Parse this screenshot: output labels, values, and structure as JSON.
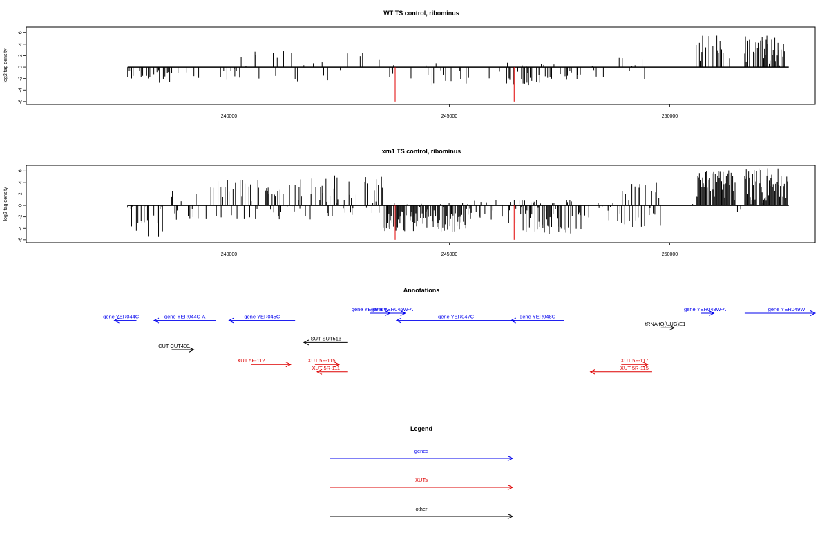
{
  "chart_data": [
    {
      "type": "bar",
      "title": "WT TS control, ribominus",
      "xlabel": "",
      "ylabel": "log2 tag density",
      "xlim": [
        235400,
        253300
      ],
      "ylim": [
        -6.5,
        7
      ],
      "xticks": [
        240000,
        245000,
        250000
      ],
      "xtick_labels": [
        "240000",
        "245000",
        "250000"
      ],
      "yticks": [
        -6,
        -4,
        -2,
        0,
        2,
        4,
        6
      ],
      "ytick_labels": [
        "-6",
        "-4",
        "-2",
        "0",
        "2",
        "4",
        "6"
      ],
      "baseline_range": [
        237700,
        252700
      ],
      "highlight_x": [
        243770,
        246470
      ],
      "highlight_y": -6,
      "highlight_color": "#e00000",
      "bar_color": "#000000",
      "seed": 11,
      "regions": [
        {
          "from": 237700,
          "to": 238700,
          "min": -3.0,
          "max": 0.0,
          "density": 0.3
        },
        {
          "from": 238700,
          "to": 239700,
          "min": -2.0,
          "max": 0.4,
          "density": 0.12
        },
        {
          "from": 239700,
          "to": 240500,
          "min": -2.5,
          "max": 2.3,
          "density": 0.2
        },
        {
          "from": 240500,
          "to": 241500,
          "min": -2.0,
          "max": 2.8,
          "density": 0.15
        },
        {
          "from": 241500,
          "to": 242400,
          "min": -2.5,
          "max": 1.5,
          "density": 0.15
        },
        {
          "from": 242400,
          "to": 243500,
          "min": -1.5,
          "max": 2.8,
          "density": 0.15
        },
        {
          "from": 243500,
          "to": 244500,
          "min": -2.5,
          "max": 0.5,
          "density": 0.15
        },
        {
          "from": 244500,
          "to": 246600,
          "min": -3.2,
          "max": 1.0,
          "density": 0.2
        },
        {
          "from": 246600,
          "to": 247900,
          "min": -3.2,
          "max": 0.5,
          "density": 0.45
        },
        {
          "from": 247900,
          "to": 248600,
          "min": -2.0,
          "max": 0.5,
          "density": 0.15
        },
        {
          "from": 248600,
          "to": 249600,
          "min": -2.8,
          "max": 2.2,
          "density": 0.25
        },
        {
          "from": 249600,
          "to": 250600,
          "min": 0.0,
          "max": 0.0,
          "density": 0.0
        },
        {
          "from": 250600,
          "to": 251400,
          "min": 0.0,
          "max": 5.5,
          "density": 0.3
        },
        {
          "from": 251400,
          "to": 251700,
          "min": -1.8,
          "max": 0.2,
          "density": 0.1
        },
        {
          "from": 251700,
          "to": 252700,
          "min": 0.0,
          "max": 5.8,
          "density": 0.55
        }
      ]
    },
    {
      "type": "bar",
      "title": "xrn1 TS control, ribominus",
      "xlabel": "",
      "ylabel": "log2 tag density",
      "xlim": [
        235400,
        253300
      ],
      "ylim": [
        -6.5,
        7
      ],
      "xticks": [
        240000,
        245000,
        250000
      ],
      "xtick_labels": [
        "240000",
        "245000",
        "250000"
      ],
      "yticks": [
        -6,
        -4,
        -2,
        0,
        2,
        4,
        6
      ],
      "ytick_labels": [
        "-6",
        "-4",
        "-2",
        "0",
        "2",
        "4",
        "6"
      ],
      "baseline_range": [
        237700,
        252700
      ],
      "highlight_x": [
        243770,
        246470
      ],
      "highlight_y": -6,
      "highlight_color": "#e00000",
      "bar_color": "#000000",
      "seed": 29,
      "regions": [
        {
          "from": 237700,
          "to": 238500,
          "min": -6.0,
          "max": 0.0,
          "density": 0.45
        },
        {
          "from": 238500,
          "to": 239300,
          "min": -3.0,
          "max": 2.6,
          "density": 0.3
        },
        {
          "from": 239300,
          "to": 240600,
          "min": -2.5,
          "max": 4.5,
          "density": 0.45
        },
        {
          "from": 240600,
          "to": 242200,
          "min": -3.0,
          "max": 5.0,
          "density": 0.5
        },
        {
          "from": 242200,
          "to": 243500,
          "min": -2.0,
          "max": 5.3,
          "density": 0.55
        },
        {
          "from": 243500,
          "to": 245500,
          "min": -4.6,
          "max": 0.5,
          "density": 0.85
        },
        {
          "from": 245500,
          "to": 246600,
          "min": -3.5,
          "max": 1.0,
          "density": 0.4
        },
        {
          "from": 246600,
          "to": 248000,
          "min": -5.0,
          "max": 1.0,
          "density": 0.7
        },
        {
          "from": 248000,
          "to": 248600,
          "min": -2.5,
          "max": 0.5,
          "density": 0.2
        },
        {
          "from": 248600,
          "to": 249800,
          "min": -4.0,
          "max": 4.0,
          "density": 0.6
        },
        {
          "from": 249800,
          "to": 250600,
          "min": 0.0,
          "max": 0.5,
          "density": 0.03
        },
        {
          "from": 250600,
          "to": 251500,
          "min": 0.0,
          "max": 6.2,
          "density": 0.9
        },
        {
          "from": 251500,
          "to": 251700,
          "min": -2.5,
          "max": 2.5,
          "density": 0.3
        },
        {
          "from": 251700,
          "to": 252700,
          "min": 0.0,
          "max": 6.5,
          "density": 0.9
        }
      ]
    }
  ],
  "annotations": {
    "title": "Annotations",
    "colors": {
      "genes": "#0000ee",
      "xuts": "#dd0000",
      "other": "#000000"
    },
    "features": [
      {
        "label": "gene YER044C",
        "start": 237900,
        "end": 237400,
        "kind": "genes",
        "track": 1,
        "label_x": 237550
      },
      {
        "label": "gene YER044C-A",
        "start": 239700,
        "end": 238300,
        "kind": "genes",
        "track": 1,
        "label_x": 239000
      },
      {
        "label": "gene YER045C",
        "start": 241500,
        "end": 240000,
        "kind": "genes",
        "track": 1,
        "label_x": 240750
      },
      {
        "label": "gene YER046W",
        "start": 243200,
        "end": 243650,
        "kind": "genes",
        "track": 0,
        "label_x": 243200
      },
      {
        "label": "gene YER046W-A",
        "start": 243650,
        "end": 244000,
        "kind": "genes",
        "track": 0,
        "label_x": 243700
      },
      {
        "label": "gene YER047C",
        "start": 246500,
        "end": 243800,
        "kind": "genes",
        "track": 1,
        "label_x": 245150
      },
      {
        "label": "gene YER048C",
        "start": 247600,
        "end": 246400,
        "kind": "genes",
        "track": 1,
        "label_x": 247000
      },
      {
        "label": "gene YER048W-A",
        "start": 250700,
        "end": 251000,
        "kind": "genes",
        "track": 0,
        "label_x": 250800
      },
      {
        "label": "gene YER049W",
        "start": 251700,
        "end": 253300,
        "kind": "genes",
        "track": 0,
        "label_x": 252650
      },
      {
        "label": "tRNA tQ(UUG)E1",
        "start": 249800,
        "end": 250100,
        "kind": "other",
        "track": 2,
        "label_x": 249900
      },
      {
        "label": "SUT SUT513",
        "start": 242700,
        "end": 241700,
        "kind": "other",
        "track": 4,
        "label_x": 242200
      },
      {
        "label": "CUT CUT409",
        "start": 238700,
        "end": 239200,
        "kind": "other",
        "track": 5,
        "label_x": 238750
      },
      {
        "label": "XUT 5F-112",
        "start": 240500,
        "end": 241400,
        "kind": "xuts",
        "track": 7,
        "label_x": 240500
      },
      {
        "label": "XUT 5F-115",
        "start": 241950,
        "end": 242500,
        "kind": "xuts",
        "track": 7,
        "label_x": 242100
      },
      {
        "label": "XUT 5R-111",
        "start": 242700,
        "end": 242000,
        "kind": "xuts",
        "track": 8,
        "label_x": 242200
      },
      {
        "label": "XUT 5F-117",
        "start": 248900,
        "end": 249500,
        "kind": "xuts",
        "track": 7,
        "label_x": 249200
      },
      {
        "label": "XUT 5R-115",
        "start": 249600,
        "end": 248200,
        "kind": "xuts",
        "track": 8,
        "label_x": 249200
      }
    ]
  },
  "legend": {
    "title": "Legend",
    "items": [
      {
        "label": "genes",
        "kind": "genes"
      },
      {
        "label": "XUTs",
        "kind": "xuts"
      },
      {
        "label": "other",
        "kind": "other"
      }
    ]
  }
}
